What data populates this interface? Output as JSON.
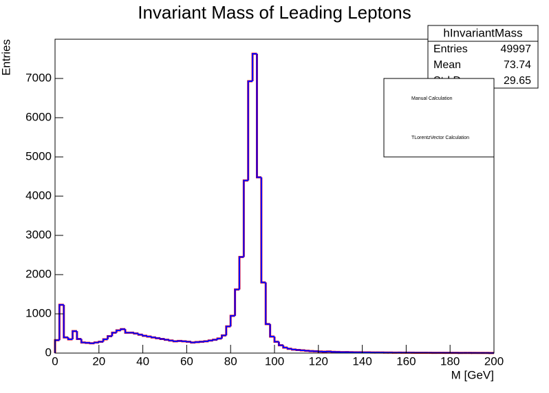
{
  "chart_data": {
    "type": "histogram",
    "title": "Invariant Mass of Leading Leptons",
    "x_label": "M [GeV]",
    "y_label": "Entries",
    "bins": [
      0,
      2,
      4,
      6,
      8,
      10,
      12,
      14,
      16,
      18,
      20,
      22,
      24,
      26,
      28,
      30,
      32,
      34,
      36,
      38,
      40,
      42,
      44,
      46,
      48,
      50,
      52,
      54,
      56,
      58,
      60,
      62,
      64,
      66,
      68,
      70,
      72,
      74,
      76,
      78,
      80,
      82,
      84,
      86,
      88,
      90,
      92,
      94,
      96,
      98,
      100,
      102,
      104,
      106,
      108,
      110,
      112,
      114,
      116,
      118,
      120,
      122,
      124,
      126,
      128,
      130,
      132,
      134,
      136,
      138,
      140,
      142,
      144,
      146,
      148,
      150,
      152,
      154,
      156,
      158,
      160,
      162,
      164,
      166,
      168,
      170,
      172,
      174,
      176,
      178,
      180,
      182,
      184,
      186,
      188,
      190,
      192,
      194,
      196,
      198,
      200
    ],
    "series": [
      {
        "name": "Manual Calculation",
        "color": "#ff0000",
        "values": [
          330,
          1230,
          400,
          350,
          560,
          360,
          270,
          260,
          250,
          270,
          290,
          350,
          430,
          520,
          580,
          610,
          520,
          520,
          500,
          470,
          440,
          420,
          400,
          380,
          360,
          340,
          320,
          300,
          310,
          300,
          290,
          270,
          280,
          290,
          300,
          320,
          340,
          370,
          450,
          680,
          950,
          1620,
          2450,
          4400,
          6930,
          7630,
          4480,
          1800,
          740,
          420,
          290,
          200,
          140,
          110,
          90,
          80,
          70,
          60,
          50,
          45,
          40,
          35,
          40,
          30,
          28,
          25,
          25,
          22,
          20,
          20,
          18,
          18,
          16,
          15,
          15,
          14,
          13,
          12,
          12,
          11,
          10,
          10,
          9,
          9,
          8,
          8,
          7,
          7,
          7,
          6,
          6,
          6,
          5,
          5,
          5,
          4,
          4,
          4,
          4,
          3
        ]
      },
      {
        "name": "TLorentzVector Calculation",
        "color": "#0000ff",
        "values": [
          330,
          1230,
          400,
          350,
          560,
          360,
          270,
          260,
          250,
          270,
          290,
          350,
          430,
          520,
          580,
          610,
          520,
          520,
          500,
          470,
          440,
          420,
          400,
          380,
          360,
          340,
          320,
          300,
          310,
          300,
          290,
          270,
          280,
          290,
          300,
          320,
          340,
          370,
          450,
          680,
          950,
          1620,
          2450,
          4400,
          6930,
          7630,
          4480,
          1800,
          740,
          420,
          290,
          200,
          140,
          110,
          90,
          80,
          70,
          60,
          50,
          45,
          40,
          35,
          40,
          30,
          28,
          25,
          25,
          22,
          20,
          20,
          18,
          18,
          16,
          15,
          15,
          14,
          13,
          12,
          12,
          11,
          10,
          10,
          9,
          9,
          8,
          8,
          7,
          7,
          7,
          6,
          6,
          6,
          5,
          5,
          5,
          4,
          4,
          4,
          4,
          3
        ]
      }
    ],
    "xlim": [
      0,
      200
    ],
    "xticks": [
      0,
      20,
      40,
      60,
      80,
      100,
      120,
      140,
      160,
      180,
      200
    ],
    "ylim": [
      0,
      8000
    ],
    "yticks": [
      0,
      1000,
      2000,
      3000,
      4000,
      5000,
      6000,
      7000
    ],
    "stats": {
      "title": "hInvariantMass",
      "rows": [
        {
          "label": "Entries",
          "value": 49997
        },
        {
          "label": "Mean",
          "value": 73.74
        },
        {
          "label": "Std Dev",
          "value": 29.65
        }
      ]
    }
  }
}
